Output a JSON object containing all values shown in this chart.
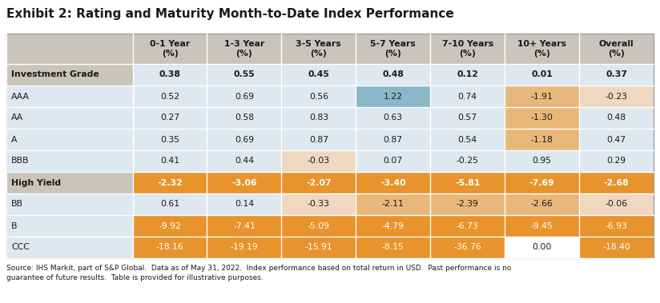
{
  "title": "Exhibit 2: Rating and Maturity Month-to-Date Index Performance",
  "columns": [
    "",
    "0-1 Year\n(%)",
    "1-3 Year\n(%)",
    "3-5 Years\n(%)",
    "5-7 Years\n(%)",
    "7-10 Years\n(%)",
    "10+ Years\n(%)",
    "Overall\n(%)"
  ],
  "rows": [
    [
      "Investment Grade",
      "0.38",
      "0.55",
      "0.45",
      "0.48",
      "0.12",
      "0.01",
      "0.37"
    ],
    [
      "AAA",
      "0.52",
      "0.69",
      "0.56",
      "1.22",
      "0.74",
      "-1.91",
      "-0.23"
    ],
    [
      "AA",
      "0.27",
      "0.58",
      "0.83",
      "0.63",
      "0.57",
      "-1.30",
      "0.48"
    ],
    [
      "A",
      "0.35",
      "0.69",
      "0.87",
      "0.87",
      "0.54",
      "-1.18",
      "0.47"
    ],
    [
      "BBB",
      "0.41",
      "0.44",
      "-0.03",
      "0.07",
      "-0.25",
      "0.95",
      "0.29"
    ],
    [
      "High Yield",
      "-2.32",
      "-3.06",
      "-2.07",
      "-3.40",
      "-5.81",
      "-7.69",
      "-2.68"
    ],
    [
      "BB",
      "0.61",
      "0.14",
      "-0.33",
      "-2.11",
      "-2.39",
      "-2.66",
      "-0.06"
    ],
    [
      "B",
      "-9.92",
      "-7.41",
      "-5.09",
      "-4.79",
      "-6.73",
      "-9.45",
      "-6.93"
    ],
    [
      "CCC",
      "-18.16",
      "-19.19",
      "-15.91",
      "-8.15",
      "-36.76",
      "0.00",
      "-18.40"
    ]
  ],
  "bold_rows": [
    0,
    5
  ],
  "header_bg": "#c9c5bc",
  "orange_strong": "#e8932b",
  "footnote": "Source: IHS Markit, part of S&P Global.  Data as of May 31, 2022.  Index performance based on total return in USD.  Past performance is no\nguarantee of future results.  Table is provided for illustrative purposes.",
  "cell_colors": [
    [
      "#c9c5bc",
      "#dde8f0",
      "#dde8f0",
      "#dde8f0",
      "#dde8f0",
      "#dde8f0",
      "#dde8f0",
      "#dde8f0"
    ],
    [
      "#dde8f0",
      "#dde8f0",
      "#dde8f0",
      "#dde8f0",
      "#8ab8c8",
      "#dde8f0",
      "#e8b87a",
      "#f0d8c0"
    ],
    [
      "#dde8f0",
      "#dde8f0",
      "#dde8f0",
      "#dde8f0",
      "#dde8f0",
      "#dde8f0",
      "#e8b87a",
      "#dde8f0"
    ],
    [
      "#dde8f0",
      "#dde8f0",
      "#dde8f0",
      "#dde8f0",
      "#dde8f0",
      "#dde8f0",
      "#e8b87a",
      "#dde8f0"
    ],
    [
      "#dde8f0",
      "#dde8f0",
      "#dde8f0",
      "#f0d8c0",
      "#dde8f0",
      "#dde8f0",
      "#dde8f0",
      "#dde8f0"
    ],
    [
      "#c9c5bc",
      "#e8932b",
      "#e8932b",
      "#e8932b",
      "#e8932b",
      "#e8932b",
      "#e8932b",
      "#e8932b"
    ],
    [
      "#dde8f0",
      "#dde8f0",
      "#dde8f0",
      "#f0d8c0",
      "#e8b87a",
      "#e8b87a",
      "#e8b87a",
      "#f0d8c0"
    ],
    [
      "#dde8f0",
      "#e8932b",
      "#e8932b",
      "#e8932b",
      "#e8932b",
      "#e8932b",
      "#e8932b",
      "#e8932b"
    ],
    [
      "#dde8f0",
      "#e8932b",
      "#e8932b",
      "#e8932b",
      "#e8932b",
      "#e8932b",
      "#ffffff",
      "#e8932b"
    ]
  ]
}
